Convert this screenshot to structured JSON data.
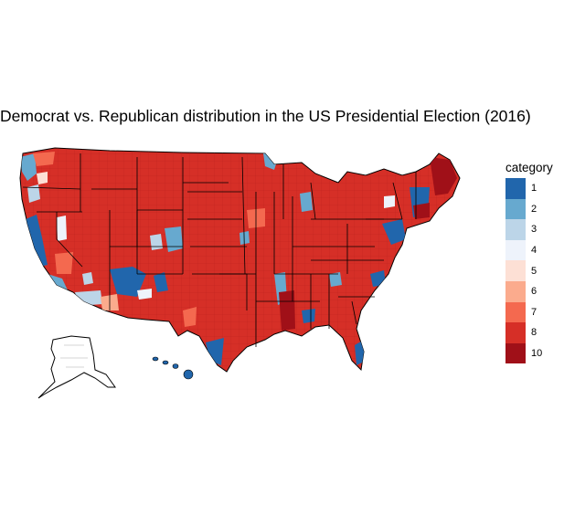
{
  "title": "Democrat vs. Republican distribution in the US Presidential Election (2016)",
  "legend": {
    "title": "category",
    "items": [
      {
        "label": "1",
        "color": "#2166ac"
      },
      {
        "label": "2",
        "color": "#67a9cf"
      },
      {
        "label": "3",
        "color": "#bcd5e8"
      },
      {
        "label": "4",
        "color": "#eef3fb"
      },
      {
        "label": "5",
        "color": "#fde0d5"
      },
      {
        "label": "6",
        "color": "#fbab8d"
      },
      {
        "label": "7",
        "color": "#f4694f"
      },
      {
        "label": "8",
        "color": "#d62f27"
      },
      {
        "label": "10",
        "color": "#a01018"
      }
    ]
  }
}
